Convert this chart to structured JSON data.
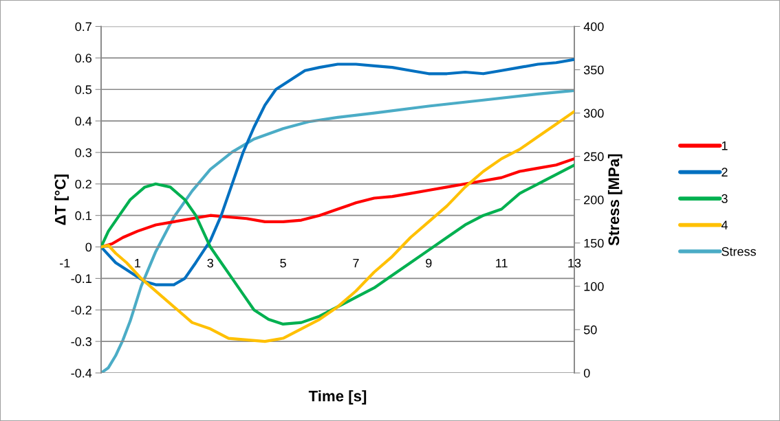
{
  "chart_data": {
    "type": "line",
    "xlabel": "Time [s]",
    "ylabel": "ΔT [°C]",
    "y2label": "Stress [MPa]",
    "xlim": [
      0,
      13
    ],
    "xticks": [
      1,
      3,
      5,
      7,
      9,
      11,
      13
    ],
    "annotations": [
      "-1"
    ],
    "ylim": [
      -0.4,
      0.7
    ],
    "yticks": [
      -0.4,
      -0.3,
      -0.2,
      -0.1,
      0,
      0.1,
      0.2,
      0.3,
      0.4,
      0.5,
      0.6,
      0.7
    ],
    "y2lim": [
      0,
      400
    ],
    "y2ticks": [
      0,
      50,
      100,
      150,
      200,
      250,
      300,
      350,
      400
    ],
    "grid": "y",
    "legend": "right",
    "marker": "none",
    "line_style": "solid",
    "series": [
      {
        "name": "1",
        "color": "#ff0000",
        "x": [
          0,
          0.3,
          0.6,
          1,
          1.5,
          2,
          2.5,
          3,
          3.5,
          4,
          4.5,
          5,
          5.5,
          6,
          6.5,
          7,
          7.5,
          8,
          8.5,
          9,
          9.5,
          10,
          10.5,
          11,
          11.5,
          12,
          12.5,
          13
        ],
        "values": [
          0,
          0.01,
          0.03,
          0.05,
          0.07,
          0.08,
          0.09,
          0.1,
          0.095,
          0.09,
          0.08,
          0.08,
          0.085,
          0.1,
          0.12,
          0.14,
          0.155,
          0.16,
          0.17,
          0.18,
          0.19,
          0.2,
          0.21,
          0.22,
          0.24,
          0.25,
          0.26,
          0.28
        ]
      },
      {
        "name": "2",
        "color": "#0070c0",
        "x": [
          0,
          0.4,
          0.8,
          1.2,
          1.5,
          2,
          2.3,
          2.6,
          3,
          3.3,
          3.6,
          3.9,
          4.2,
          4.5,
          4.8,
          5.2,
          5.6,
          6,
          6.5,
          7,
          7.5,
          8,
          8.5,
          9,
          9.5,
          10,
          10.5,
          11,
          11.5,
          12,
          12.5,
          13
        ],
        "values": [
          0,
          -0.05,
          -0.08,
          -0.11,
          -0.12,
          -0.12,
          -0.1,
          -0.05,
          0.02,
          0.1,
          0.2,
          0.3,
          0.38,
          0.45,
          0.5,
          0.53,
          0.56,
          0.57,
          0.58,
          0.58,
          0.575,
          0.57,
          0.56,
          0.55,
          0.55,
          0.555,
          0.55,
          0.56,
          0.57,
          0.58,
          0.585,
          0.595
        ]
      },
      {
        "name": "3",
        "color": "#00b050",
        "x": [
          0,
          0.2,
          0.5,
          0.8,
          1.2,
          1.5,
          1.9,
          2.3,
          2.6,
          2.8,
          3,
          3.3,
          3.6,
          3.9,
          4.2,
          4.6,
          5,
          5.5,
          6,
          6.5,
          7,
          7.5,
          8,
          8.5,
          9,
          9.5,
          10,
          10.5,
          11,
          11.5,
          12,
          12.5,
          13
        ],
        "values": [
          0,
          0.05,
          0.1,
          0.15,
          0.19,
          0.2,
          0.19,
          0.15,
          0.1,
          0.05,
          0,
          -0.05,
          -0.1,
          -0.15,
          -0.2,
          -0.23,
          -0.245,
          -0.24,
          -0.22,
          -0.19,
          -0.16,
          -0.13,
          -0.09,
          -0.05,
          -0.01,
          0.03,
          0.07,
          0.1,
          0.12,
          0.17,
          0.2,
          0.23,
          0.26
        ]
      },
      {
        "name": "4",
        "color": "#ffc000",
        "x": [
          0,
          0.2,
          0.4,
          0.7,
          1.1,
          1.6,
          2.1,
          2.5,
          3,
          3.5,
          4,
          4.5,
          5,
          5.5,
          6,
          6.5,
          7,
          7.5,
          8,
          8.5,
          9,
          9.5,
          10,
          10.5,
          11,
          11.5,
          12,
          12.5,
          13
        ],
        "values": [
          0,
          0.005,
          -0.02,
          -0.05,
          -0.1,
          -0.15,
          -0.2,
          -0.24,
          -0.26,
          -0.29,
          -0.295,
          -0.3,
          -0.29,
          -0.26,
          -0.23,
          -0.19,
          -0.14,
          -0.08,
          -0.03,
          0.03,
          0.08,
          0.13,
          0.19,
          0.24,
          0.28,
          0.31,
          0.35,
          0.39,
          0.43
        ]
      },
      {
        "name": "Stress",
        "color": "#4bacc6",
        "axis": "y2",
        "x": [
          0,
          0.2,
          0.4,
          0.6,
          0.8,
          1.1,
          1.5,
          2,
          2.5,
          3,
          3.6,
          4.2,
          5,
          5.7,
          6.5,
          7.5,
          9,
          10.5,
          12,
          13
        ],
        "values": [
          0,
          6,
          20,
          38,
          60,
          100,
          140,
          180,
          210,
          235,
          255,
          270,
          282,
          290,
          295,
          300,
          308,
          315,
          322,
          326
        ]
      }
    ]
  }
}
